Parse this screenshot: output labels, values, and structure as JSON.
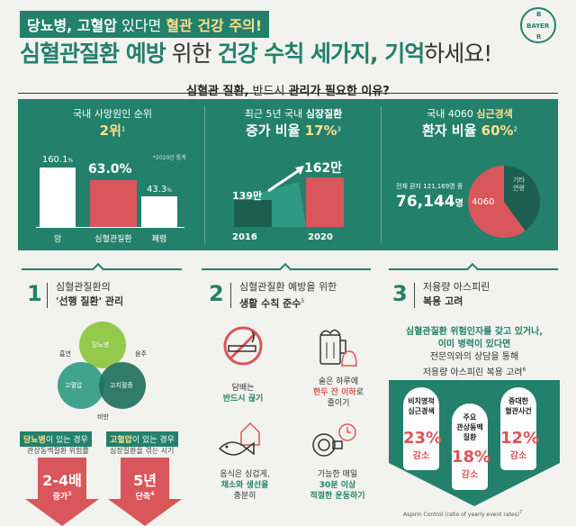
{
  "header": {
    "banner_part1": "당뇨병, 고혈압",
    "banner_part2": " 있다면 ",
    "banner_part3": "혈관 건강 주의!",
    "headline_part1": "심혈관질환 예방",
    "headline_part2": " 위한 ",
    "headline_part3": "건강 수칙 세가지, 기억",
    "headline_part4": "하세요!",
    "logo_top": "B",
    "logo_mid": "BAYER",
    "logo_bot": "R"
  },
  "reasons": {
    "title_part1": "심혈관 질환,",
    "title_part2": " 반드시 ",
    "title_part3": "관리가 필요한 이유?",
    "panel1": {
      "sub": "국내 사망원인 순위",
      "big": "2위",
      "sup": "1",
      "note": "*2020년 통계",
      "bars": [
        {
          "label": "암",
          "value": "160.1",
          "unit": "%"
        },
        {
          "label": "심혈관질환",
          "value": "63.0%"
        },
        {
          "label": "폐렴",
          "value": "43.3",
          "unit": "%"
        }
      ]
    },
    "panel2": {
      "sub_part1": "최근 5년 국내 ",
      "sub_part2": "심장질환",
      "big_part1": "증가 비율 ",
      "big_part2": "17%",
      "sup": "3",
      "bars": [
        {
          "label": "2016",
          "value": "139만"
        },
        {
          "label": "2020",
          "value": "162만"
        }
      ]
    },
    "panel3": {
      "sub_part1": "국내 4060 ",
      "sub_part2": "심근경색",
      "big_part1": "환자 비율 ",
      "big_part2": "60%",
      "sup": "2",
      "total_label": "전체 환자 121,169명 중",
      "count": "76,144",
      "count_unit": "명",
      "pie_main": "4060",
      "pie_other_1": "기타",
      "pie_other_2": "연령",
      "pie_fraction": 0.6
    }
  },
  "steps": {
    "s1": {
      "num": "1",
      "line1": "심혈관질환의",
      "line2_part1": "'선행 질환'",
      "line2_part2": " 관리",
      "venn": {
        "top": "당뇨병",
        "left": "고혈압",
        "right": "고지혈증",
        "label_left": "흡연",
        "label_right": "음주",
        "label_bottom": "비만"
      },
      "card1_part1": "당뇨병",
      "card1_part2": "이 있는 경우",
      "card1_sub": "관상동맥질환 위험률",
      "card1_big": "2-4배",
      "card1_small": "증가",
      "card1_sup": "3",
      "card2_part1": "고혈압",
      "card2_part2": "이 있는 경우",
      "card2_sub": "심장질환을 겪는 시기",
      "card2_big": "5년",
      "card2_small": "단축",
      "card2_sup": "4"
    },
    "s2": {
      "num": "2",
      "line1": "심혈관질환 예방을 위한",
      "line2": "생활 수칙 준수",
      "sup": "5",
      "items": [
        {
          "l1": "담배는",
          "l2_b": "반드시 끊기",
          "l2": "",
          "l3": ""
        },
        {
          "l1": "술은 하루에",
          "l2_b": "한두 잔 이하",
          "l2": "로",
          "l3": "줄이기"
        },
        {
          "l1": "음식은 싱겁게,",
          "l2_b": "채소와 생선을",
          "l2": "",
          "l3": "충분히"
        },
        {
          "l1": "가능한 매일",
          "l2_b": "30분 이상",
          "l2": "",
          "l3": "적절한 운동하기"
        }
      ]
    },
    "s3": {
      "num": "3",
      "line1": "저용량 아스피린",
      "line2": "복용 고려",
      "hd1": "심혈관질환 위험인자를 갖고 있거나,",
      "hd2": "이미 병력이 있다면",
      "hd3": "전문의와의 상담을 통해",
      "hd4": "저용량 아스피린 복용 고려",
      "hd_sup": "6",
      "pills": [
        {
          "t1": "비치명적",
          "t2": "심근경색",
          "t3": "",
          "pct": "23%",
          "s": "감소"
        },
        {
          "t1": "주요",
          "t2": "관상동맥",
          "t3": "질환",
          "pct": "18%",
          "s": "감소"
        },
        {
          "t1": "중대한",
          "t2": "혈관사건",
          "t3": "",
          "pct": "12%",
          "s": "감소"
        }
      ],
      "footnote": "Aspirin Control (ratio of yearly event rates)",
      "footnote_sup": "7"
    }
  },
  "colors": {
    "green": "#23806b",
    "red": "#d9565a",
    "yellow": "#ffe08a"
  }
}
